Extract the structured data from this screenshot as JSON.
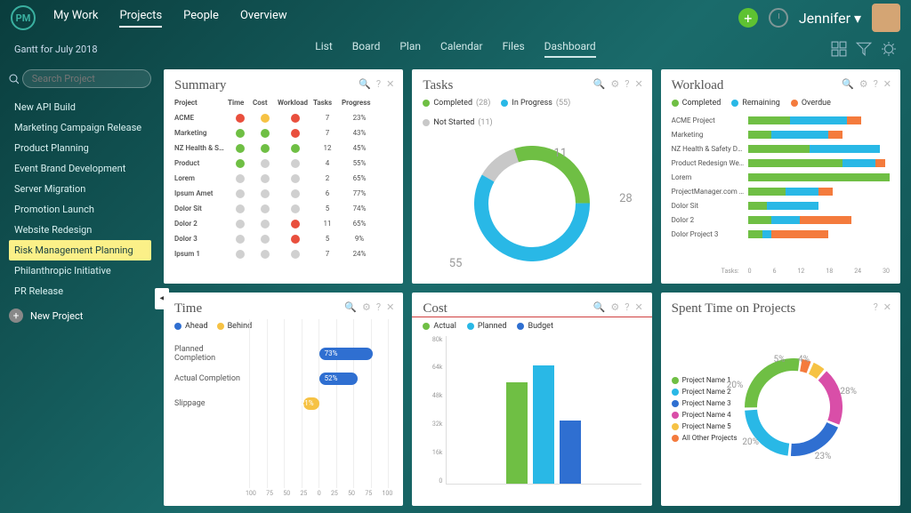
{
  "colors": {
    "green": "#6fbf44",
    "cyan": "#29b8e6",
    "yellow": "#f6c244",
    "red": "#e94f3d",
    "orange": "#f47b3d",
    "blue": "#2f6fd1",
    "grey": "#d0d0d0",
    "magenta": "#d94ea8"
  },
  "topnav": {
    "logo": "PM",
    "items": [
      "My Work",
      "Projects",
      "People",
      "Overview"
    ],
    "active_index": 1,
    "user": "Jennifer",
    "dropdown_caret": "▾"
  },
  "subtabs": {
    "breadcrumb": "Gantt for July 2018",
    "items": [
      "List",
      "Board",
      "Plan",
      "Calendar",
      "Files",
      "Dashboard"
    ],
    "active_index": 5
  },
  "sidebar": {
    "search_placeholder": "Search Project",
    "items": [
      "New API Build",
      "Marketing Campaign Release",
      "Product Planning",
      "Event Brand Development",
      "Server Migration",
      "Promotion Launch",
      "Website Redesign",
      "Risk Management Planning",
      "Philanthropic Initiative",
      "PR Release"
    ],
    "active_index": 7,
    "new_label": "New Project",
    "collapse_caret": "◂"
  },
  "summary": {
    "title": "Summary",
    "columns": [
      "Project",
      "Time",
      "Cost",
      "Workload",
      "Tasks",
      "Progress"
    ],
    "status_colors": {
      "g": "#6fbf44",
      "y": "#f6c244",
      "r": "#e94f3d",
      "x": "#d0d0d0"
    },
    "rows": [
      {
        "name": "ACME",
        "time": "r",
        "cost": "y",
        "workload": "r",
        "tasks": 7,
        "progress": "23%"
      },
      {
        "name": "Marketing",
        "time": "g",
        "cost": "g",
        "workload": "r",
        "tasks": 7,
        "progress": "43%"
      },
      {
        "name": "NZ Health & Sa…",
        "time": "g",
        "cost": "g",
        "workload": "g",
        "tasks": 12,
        "progress": "45%"
      },
      {
        "name": "Product",
        "time": "g",
        "cost": "x",
        "workload": "x",
        "tasks": 4,
        "progress": "55%"
      },
      {
        "name": "Lorem",
        "time": "x",
        "cost": "x",
        "workload": "x",
        "tasks": 2,
        "progress": "65%"
      },
      {
        "name": "Ipsum Amet",
        "time": "x",
        "cost": "x",
        "workload": "x",
        "tasks": 6,
        "progress": "77%"
      },
      {
        "name": "Dolor Sit",
        "time": "x",
        "cost": "x",
        "workload": "x",
        "tasks": 5,
        "progress": "74%"
      },
      {
        "name": "Dolor 2",
        "time": "x",
        "cost": "x",
        "workload": "r",
        "tasks": 11,
        "progress": "65%"
      },
      {
        "name": "Dolor 3",
        "time": "x",
        "cost": "x",
        "workload": "r",
        "tasks": 5,
        "progress": "9%"
      },
      {
        "name": "Ipsum 1",
        "time": "x",
        "cost": "x",
        "workload": "x",
        "tasks": 7,
        "progress": "24%"
      }
    ]
  },
  "tasks": {
    "title": "Tasks",
    "legend": [
      {
        "label": "Completed",
        "count": 28,
        "color": "#6fbf44"
      },
      {
        "label": "In Progress",
        "count": 55,
        "color": "#29b8e6"
      },
      {
        "label": "Not Started",
        "count": 11,
        "color": "#c8c8c8"
      }
    ],
    "donut": {
      "size": 130,
      "thickness": 16
    }
  },
  "workload": {
    "title": "Workload",
    "legend": [
      {
        "label": "Completed",
        "color": "#6fbf44"
      },
      {
        "label": "Remaining",
        "color": "#29b8e6"
      },
      {
        "label": "Overdue",
        "color": "#f47b3d"
      }
    ],
    "max": 30,
    "axis_label": "Tasks:",
    "axis": [
      0,
      6,
      12,
      18,
      24,
      30
    ],
    "rows": [
      {
        "name": "ACME Project",
        "seg": [
          9,
          12,
          3
        ]
      },
      {
        "name": "Marketing",
        "seg": [
          5,
          12,
          3
        ]
      },
      {
        "name": "NZ Health & Safety De…",
        "seg": [
          13,
          15,
          0
        ]
      },
      {
        "name": "Product Redesign We…",
        "seg": [
          20,
          7,
          2
        ]
      },
      {
        "name": "Lorem",
        "seg": [
          30,
          0,
          0
        ]
      },
      {
        "name": "ProjectManager.com …",
        "seg": [
          8,
          7,
          3
        ]
      },
      {
        "name": "Dolor Sit",
        "seg": [
          4,
          11,
          0
        ]
      },
      {
        "name": "Dolor 2",
        "seg": [
          5,
          6,
          11
        ]
      },
      {
        "name": "Dolor Project 3",
        "seg": [
          3,
          2,
          12
        ]
      }
    ]
  },
  "time": {
    "title": "Time",
    "legend": [
      {
        "label": "Ahead",
        "color": "#2f6fd1"
      },
      {
        "label": "Behind",
        "color": "#f6c244"
      }
    ],
    "axis": [
      100,
      75,
      50,
      25,
      0,
      25,
      50,
      75,
      100
    ],
    "rows": [
      {
        "label": "Planned Completion",
        "value": 73,
        "side": "right",
        "color": "#2f6fd1"
      },
      {
        "label": "Actual Completion",
        "value": 52,
        "side": "right",
        "color": "#2f6fd1"
      },
      {
        "label": "Slippage",
        "value": 21,
        "side": "left",
        "color": "#f6c244"
      }
    ]
  },
  "cost": {
    "title": "Cost",
    "legend": [
      {
        "label": "Actual",
        "color": "#6fbf44"
      },
      {
        "label": "Planned",
        "color": "#29b8e6"
      },
      {
        "label": "Budget",
        "color": "#2f6fd1"
      }
    ],
    "ylabels": [
      "80k",
      "64k",
      "48k",
      "32k",
      "16k",
      "0"
    ],
    "ymax": 80,
    "bars": [
      {
        "value": 55,
        "color": "#6fbf44"
      },
      {
        "value": 64,
        "color": "#29b8e6"
      },
      {
        "value": 34,
        "color": "#2f6fd1"
      }
    ],
    "highlighted": true
  },
  "spent": {
    "title": "Spent Time on Projects",
    "legend": [
      {
        "label": "Project Name 1",
        "color": "#6fbf44"
      },
      {
        "label": "Project Name 2",
        "color": "#29b8e6"
      },
      {
        "label": "Project Name 3",
        "color": "#2f6fd1"
      },
      {
        "label": "Project Name 4",
        "color": "#d94ea8"
      },
      {
        "label": "Project Name 5",
        "color": "#f6c244"
      },
      {
        "label": "All Other Projects",
        "color": "#f47b3d"
      }
    ],
    "slices": [
      {
        "pct": 28,
        "color": "#6fbf44"
      },
      {
        "pct": 23,
        "color": "#29b8e6"
      },
      {
        "pct": 20,
        "color": "#2f6fd1"
      },
      {
        "pct": 20,
        "color": "#d94ea8"
      },
      {
        "pct": 5,
        "color": "#f6c244"
      },
      {
        "pct": 4,
        "color": "#f47b3d"
      }
    ],
    "donut": {
      "size": 110,
      "thickness": 14,
      "gap": 3
    }
  }
}
